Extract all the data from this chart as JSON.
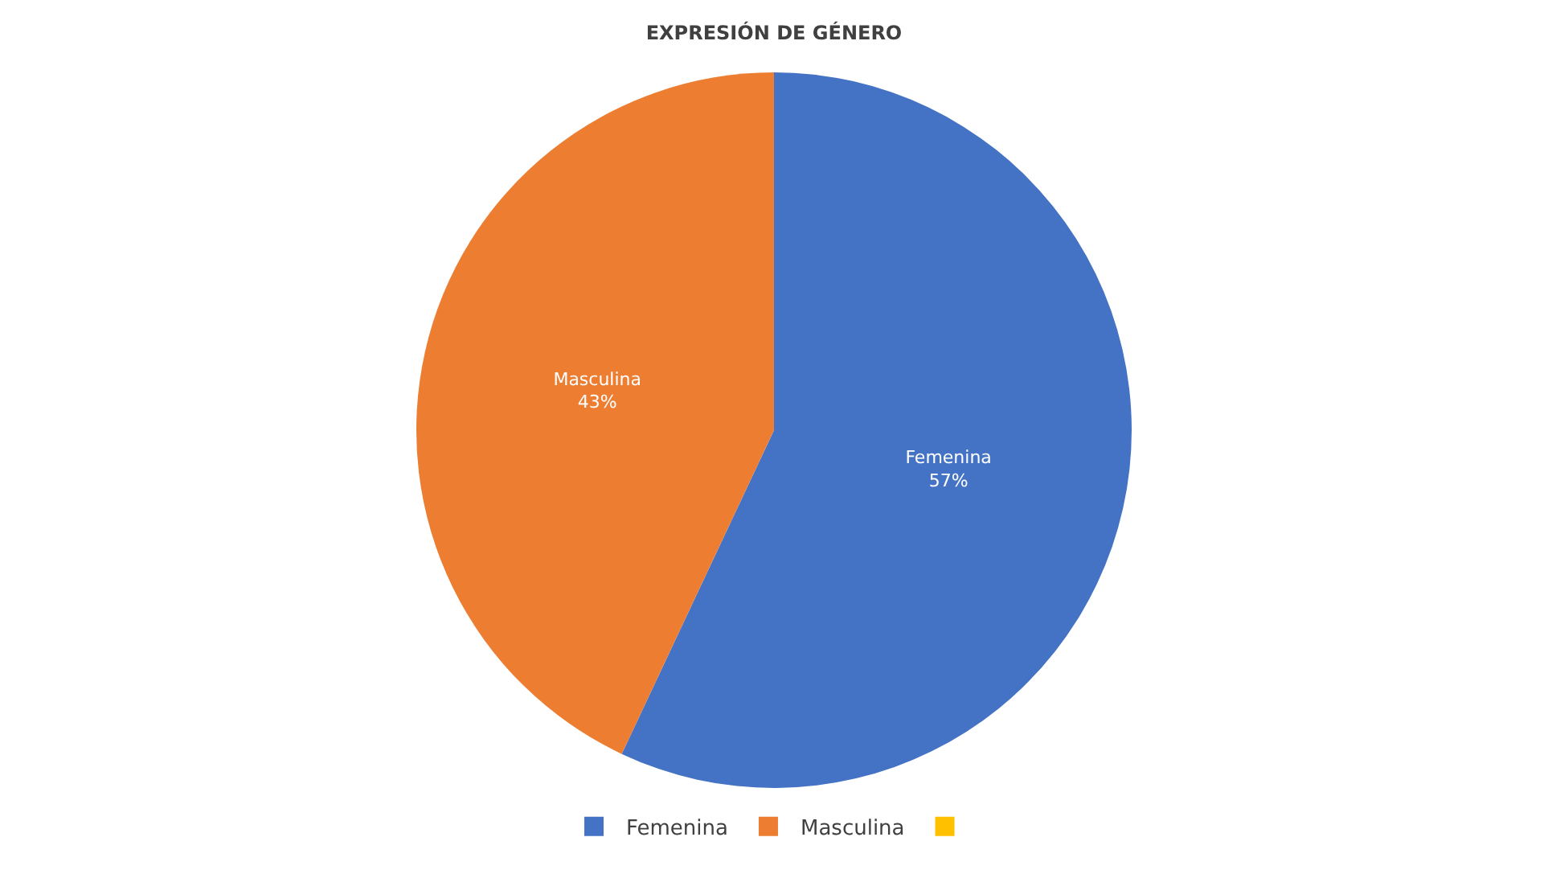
{
  "chart_data": {
    "type": "pie",
    "title": "EXPRESIÓN DE GÉNERO",
    "categories": [
      "Femenina",
      "Masculina",
      null
    ],
    "values": [
      57,
      43,
      0
    ],
    "colors": [
      "#4472c4",
      "#ed7d31",
      "#ffc000"
    ],
    "value_labels": [
      "Femenina\n57%",
      "Masculina\n43%",
      null
    ],
    "legend": "bottom"
  }
}
